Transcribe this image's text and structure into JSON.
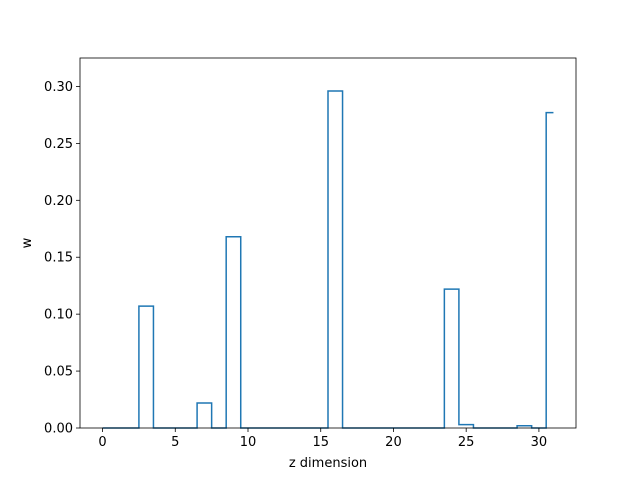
{
  "chart_data": {
    "type": "line",
    "drawstyle": "steps-mid",
    "xlabel": "z dimension",
    "ylabel": "w",
    "xlim": [
      -1.55,
      32.55
    ],
    "ylim": [
      0.0,
      0.325
    ],
    "xticks": [
      0,
      5,
      10,
      15,
      20,
      25,
      30
    ],
    "yticks": [
      0.0,
      0.05,
      0.1,
      0.15,
      0.2,
      0.25,
      0.3
    ],
    "xtick_labels": [
      "0",
      "5",
      "10",
      "15",
      "20",
      "25",
      "30"
    ],
    "ytick_labels": [
      "0.00",
      "0.05",
      "0.10",
      "0.15",
      "0.20",
      "0.25",
      "0.30"
    ],
    "grid": false,
    "series": [
      {
        "color": "#1f77b4",
        "x": [
          0,
          1,
          2,
          3,
          4,
          5,
          6,
          7,
          8,
          9,
          10,
          11,
          12,
          13,
          14,
          15,
          16,
          17,
          18,
          19,
          20,
          21,
          22,
          23,
          24,
          25,
          26,
          27,
          28,
          29,
          30,
          31
        ],
        "values": [
          0,
          0,
          0,
          0.107,
          0,
          0,
          0,
          0.022,
          0,
          0.168,
          0,
          0,
          0,
          0,
          0,
          0,
          0.296,
          0,
          0,
          0,
          0,
          0,
          0,
          0,
          0.122,
          0.003,
          0,
          0,
          0,
          0.002,
          0,
          0.277
        ]
      }
    ]
  }
}
